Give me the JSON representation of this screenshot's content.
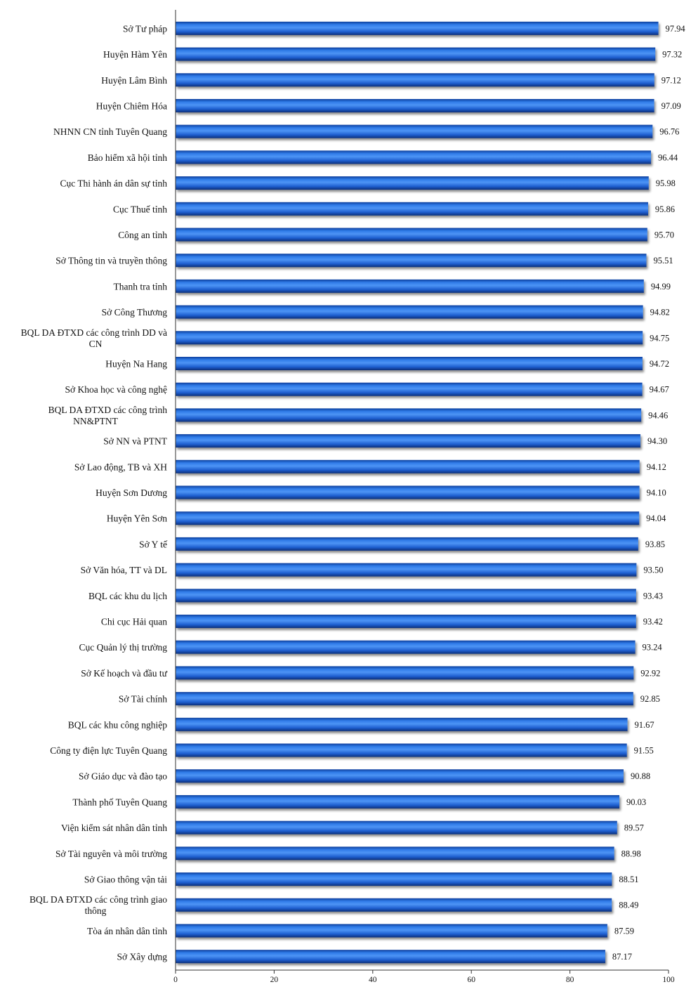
{
  "chart_data": {
    "type": "bar",
    "orientation": "horizontal",
    "xlim": [
      0,
      100
    ],
    "xticks": [
      "0",
      "20",
      "40",
      "60",
      "80",
      "100"
    ],
    "grid": false,
    "bar_color": "#1f5fd0",
    "bar_shadow_color": "#0b2f7a",
    "categories": [
      [
        "Sở Tư pháp"
      ],
      [
        "Huyện Hàm Yên"
      ],
      [
        "Huyện Lâm Bình"
      ],
      [
        "Huyện Chiêm Hóa"
      ],
      [
        "NHNN CN tỉnh Tuyên Quang"
      ],
      [
        "Bảo hiểm xã hội tỉnh"
      ],
      [
        "Cục Thi hành án dân sự tỉnh"
      ],
      [
        "Cục Thuế tỉnh"
      ],
      [
        "Công an tỉnh"
      ],
      [
        "Sở Thông tin và truyền thông"
      ],
      [
        "Thanh tra tỉnh"
      ],
      [
        "Sở Công Thương"
      ],
      [
        "BQL DA ĐTXD các công trình DD và",
        "CN"
      ],
      [
        "Huyện Na Hang"
      ],
      [
        "Sở Khoa học và công nghệ"
      ],
      [
        "BQL DA ĐTXD các công trình",
        "NN&PTNT"
      ],
      [
        "Sở NN và PTNT"
      ],
      [
        "Sở Lao động, TB và XH"
      ],
      [
        "Huyện Sơn Dương"
      ],
      [
        "Huyện Yên Sơn"
      ],
      [
        "Sở Y tế"
      ],
      [
        "Sở Văn hóa, TT và DL"
      ],
      [
        "BQL các khu du lịch"
      ],
      [
        "Chi cục Hải quan"
      ],
      [
        "Cục Quản lý thị trường"
      ],
      [
        "Sở Kế hoạch và đầu tư"
      ],
      [
        "Sở Tài chính"
      ],
      [
        "BQL các khu công nghiệp"
      ],
      [
        "Công ty điện lực Tuyên Quang"
      ],
      [
        "Sở Giáo dục và đào tạo"
      ],
      [
        "Thành phố Tuyên Quang"
      ],
      [
        "Viện kiểm sát nhân dân tỉnh"
      ],
      [
        "Sở Tài nguyên và môi trường"
      ],
      [
        "Sở Giao thông vận tải"
      ],
      [
        "BQL DA ĐTXD các công trình giao",
        "thông"
      ],
      [
        "Tòa án nhân dân tỉnh"
      ],
      [
        "Sở Xây dựng"
      ]
    ],
    "values": [
      97.94,
      97.32,
      97.12,
      97.09,
      96.76,
      96.44,
      95.98,
      95.86,
      95.7,
      95.51,
      94.99,
      94.82,
      94.75,
      94.72,
      94.67,
      94.46,
      94.3,
      94.12,
      94.1,
      94.04,
      93.85,
      93.5,
      93.43,
      93.42,
      93.24,
      92.92,
      92.85,
      91.67,
      91.55,
      90.88,
      90.03,
      89.57,
      88.98,
      88.51,
      88.49,
      87.59,
      87.17
    ],
    "value_labels": [
      "97.94",
      "97.32",
      "97.12",
      "97.09",
      "96.76",
      "96.44",
      "95.98",
      "95.86",
      "95.70",
      "95.51",
      "94.99",
      "94.82",
      "94.75",
      "94.72",
      "94.67",
      "94.46",
      "94.30",
      "94.12",
      "94.10",
      "94.04",
      "93.85",
      "93.50",
      "93.43",
      "93.42",
      "93.24",
      "92.92",
      "92.85",
      "91.67",
      "91.55",
      "90.88",
      "90.03",
      "89.57",
      "88.98",
      "88.51",
      "88.49",
      "87.59",
      "87.17"
    ]
  }
}
